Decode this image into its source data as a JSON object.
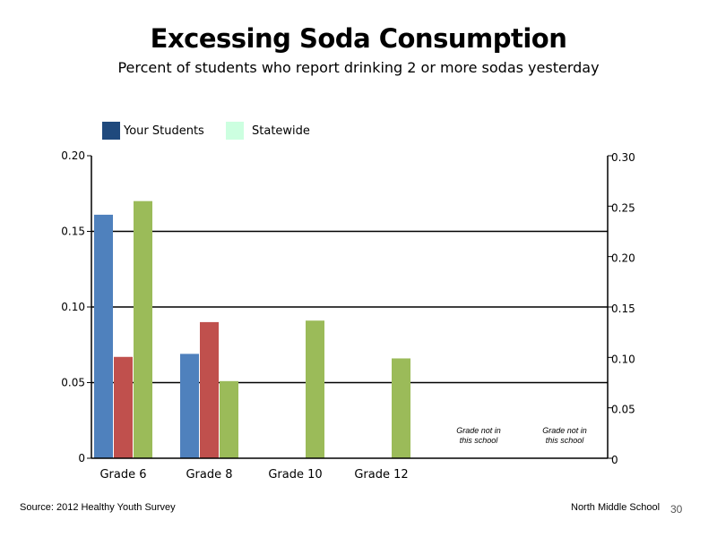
{
  "footer": {
    "source": "Source: 2012 Healthy Youth Survey",
    "school": "North Middle School",
    "page_number": "30"
  },
  "chart_data": {
    "type": "bar",
    "title": "Excessing Soda Consumption",
    "subtitle": "Percent of students who report drinking 2 or more sodas yesterday",
    "categories": [
      "Grade 6",
      "Grade 8",
      "Grade 10",
      "Grade 12",
      "",
      ""
    ],
    "left_axis": {
      "range": [
        0,
        0.2
      ],
      "ticks": [
        "0",
        "0.05",
        "0.10",
        "0.15",
        "0.20"
      ]
    },
    "right_axis": {
      "range": [
        0,
        0.3
      ],
      "ticks": [
        "0",
        "0.05",
        "0.10",
        "0.15",
        "0.20",
        "0.25",
        "0.30"
      ]
    },
    "gridlines": [
      0.05,
      0.1,
      0.15
    ],
    "legend": {
      "position": "top-left",
      "items": [
        {
          "label": "Your Students",
          "color": "#1F497D"
        },
        {
          "label": "Statewide",
          "color": "#CCFFE0"
        }
      ]
    },
    "series": [
      {
        "color": "#4F81BD",
        "values": [
          0.161,
          0.069,
          null,
          null,
          null,
          null
        ]
      },
      {
        "color": "#C0504D",
        "values": [
          0.067,
          0.09,
          null,
          null,
          null,
          null
        ]
      },
      {
        "color": "#9BBB59",
        "values": [
          0.17,
          0.051,
          0.091,
          0.066,
          null,
          null
        ]
      }
    ],
    "annotations": [
      {
        "category_index": 4,
        "lines": [
          "Grade not in",
          "this school"
        ]
      },
      {
        "category_index": 5,
        "lines": [
          "Grade not in",
          "this school"
        ]
      }
    ]
  }
}
